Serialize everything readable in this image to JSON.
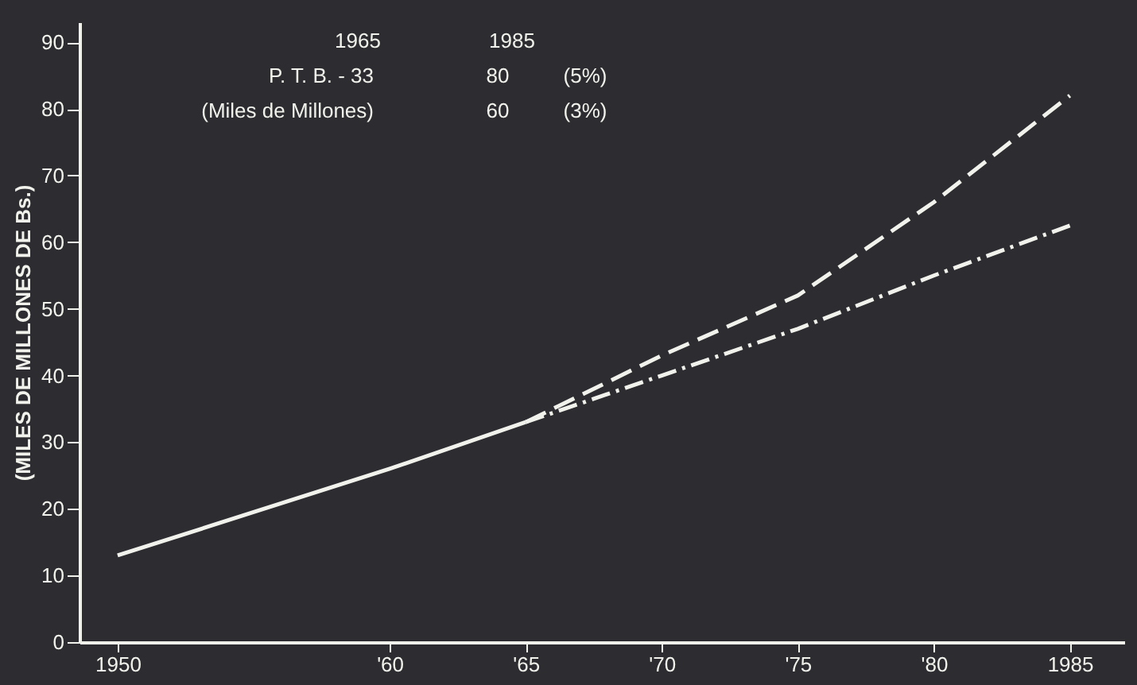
{
  "chart_data": {
    "type": "line",
    "ylabel": "(MILES DE MILLONES DE Bs.)",
    "series": [
      {
        "color": "#f2f2ec",
        "line_style": "solid",
        "x": [
          1950,
          1955,
          1960,
          1965
        ],
        "values": [
          13,
          19.5,
          26,
          33
        ]
      },
      {
        "color": "#f2f2ec",
        "line_style": "dashed",
        "x": [
          1965,
          1970,
          1975,
          1980,
          1985
        ],
        "values": [
          33,
          43,
          52,
          66,
          82
        ]
      },
      {
        "color": "#f2f2ec",
        "line_style": "dashdot",
        "x": [
          1965,
          1970,
          1975,
          1980,
          1985
        ],
        "values": [
          33,
          40,
          47,
          55,
          62.5
        ]
      }
    ],
    "xlim": [
      1948.6,
      1987
    ],
    "xticks": [
      {
        "value": 1950,
        "label": "1950"
      },
      {
        "value": 1960,
        "label": "'60"
      },
      {
        "value": 1965,
        "label": "'65"
      },
      {
        "value": 1970,
        "label": "'70"
      },
      {
        "value": 1975,
        "label": "'75"
      },
      {
        "value": 1980,
        "label": "'80"
      },
      {
        "value": 1985,
        "label": "1985"
      }
    ],
    "ylim": [
      0,
      93
    ],
    "yticks": [
      0,
      10,
      20,
      30,
      40,
      50,
      60,
      70,
      80,
      90
    ],
    "annotations": [
      "1965",
      "1985",
      "P. T. B.  - 33",
      "80",
      "(5%)",
      "(Miles de Millones)",
      "60",
      "(3%)"
    ],
    "grid": false,
    "marker": "none"
  }
}
